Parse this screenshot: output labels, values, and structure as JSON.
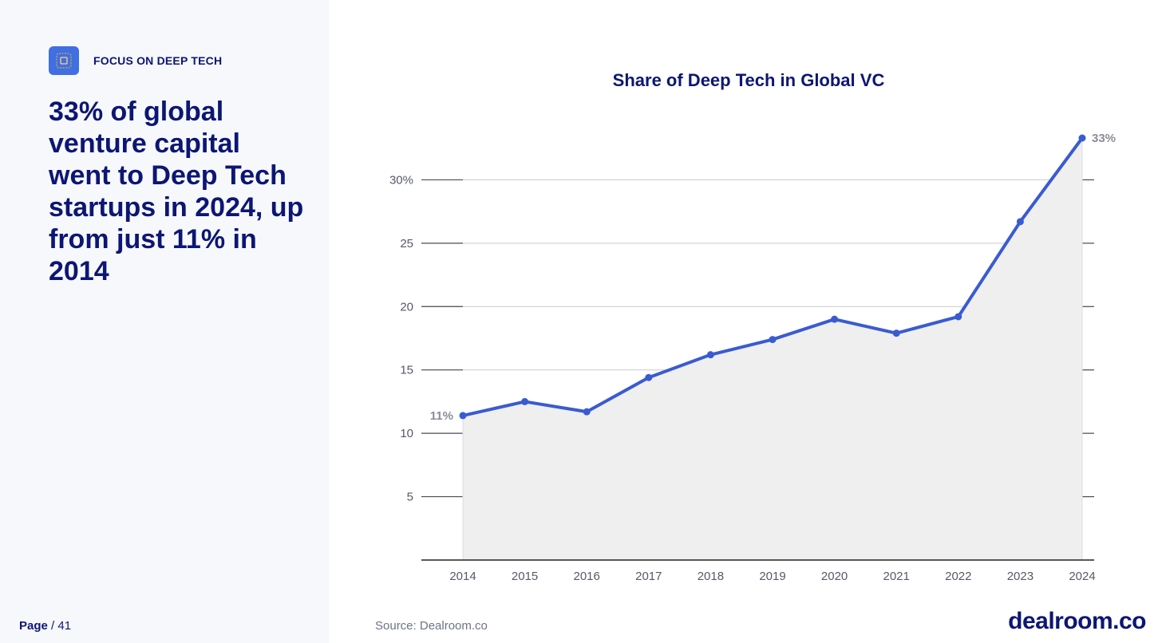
{
  "sidebar": {
    "tag": "FOCUS ON DEEP TECH",
    "tag_icon": "chip-icon",
    "headline": "33% of global venture capital went to Deep Tech startups in 2024, up from just 11% in 2014"
  },
  "footer": {
    "page_label": "Page",
    "page_total": "/ 41",
    "source": "Source: Dealroom.co",
    "brand": "dealroom.co"
  },
  "colors": {
    "navy": "#0c1673",
    "line": "#3a5bd0",
    "area": "#efeff0",
    "icon": "#3f6fe0"
  },
  "chart_data": {
    "type": "area",
    "title": "Share of Deep Tech in Global VC",
    "xlabel": "",
    "ylabel": "",
    "categories": [
      "2014",
      "2015",
      "2016",
      "2017",
      "2018",
      "2019",
      "2020",
      "2021",
      "2022",
      "2023",
      "2024"
    ],
    "values": [
      11.4,
      12.5,
      11.7,
      14.4,
      16.2,
      17.4,
      19.0,
      17.9,
      19.2,
      26.7,
      33.3
    ],
    "ylim": [
      0,
      33.3
    ],
    "yticks": [
      "5",
      "10",
      "15",
      "20",
      "25",
      "30%"
    ],
    "ytick_values": [
      5,
      10,
      15,
      20,
      25,
      30
    ],
    "data_labels": [
      {
        "index": 0,
        "text": "11%"
      },
      {
        "index": 10,
        "text": "33%"
      }
    ],
    "grid": true,
    "legend": "none"
  }
}
